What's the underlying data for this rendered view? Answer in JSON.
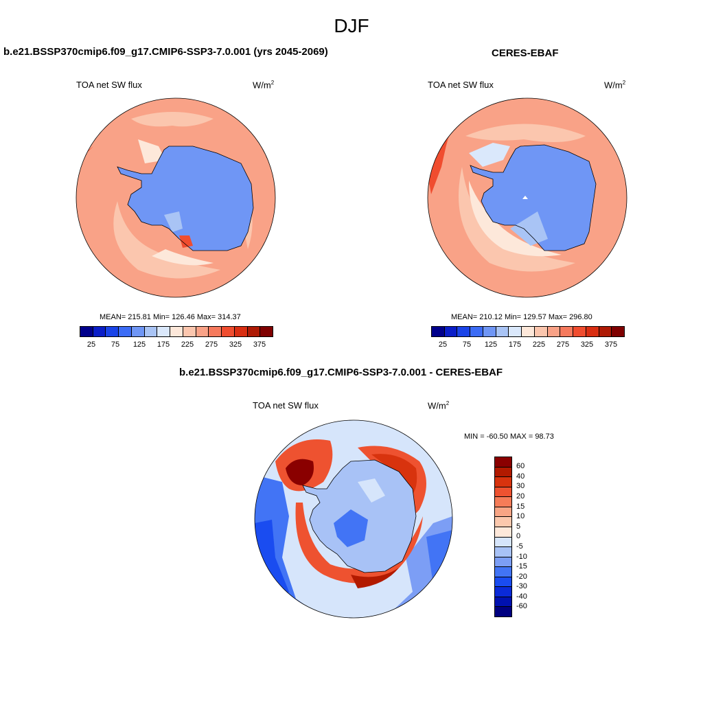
{
  "page": {
    "title": "DJF"
  },
  "panels": [
    {
      "title": "b.e21.BSSP370cmip6.f09_g17.CMIP6-SSP3-7.0.001 (yrs 2045-2069)",
      "left_label": "TOA net SW flux",
      "units": "W/m",
      "units_sup": "2",
      "stats": "MEAN= 215.81  Min= 126.46  Max= 314.37"
    },
    {
      "title": "CERES-EBAF",
      "left_label": "TOA net SW flux",
      "units": "W/m",
      "units_sup": "2",
      "stats": "MEAN= 210.12  Min= 129.57  Max= 296.80"
    },
    {
      "title": "b.e21.BSSP370cmip6.f09_g17.CMIP6-SSP3-7.0.001 - CERES-EBAF",
      "left_label": "TOA net SW flux",
      "units": "W/m",
      "units_sup": "2",
      "stats": "MIN = -60.50 MAX =  98.73"
    }
  ],
  "colorbars": {
    "abs": {
      "colors": [
        "#00008b",
        "#0a1ec8",
        "#1a44e8",
        "#3c6cf5",
        "#6f96f5",
        "#a9c4f5",
        "#dae8fb",
        "#fde8da",
        "#fbc6ae",
        "#f9a287",
        "#f67a5d",
        "#f04d2f",
        "#d92e12",
        "#ae1a05",
        "#7f0000"
      ],
      "labels": [
        "25",
        "75",
        "125",
        "175",
        "225",
        "275",
        "325",
        "375"
      ]
    },
    "diff": {
      "colors": [
        "#000080",
        "#0011b0",
        "#0a2ad8",
        "#1a4cf0",
        "#4274f5",
        "#7c9ef5",
        "#a8c2f6",
        "#d6e5fb",
        "#fde8da",
        "#fbc8ad",
        "#f8a585",
        "#f57c58",
        "#ee5230",
        "#d8330e",
        "#b21a00",
        "#8a0000"
      ],
      "labels": [
        "60",
        "40",
        "30",
        "20",
        "15",
        "10",
        "5",
        "0",
        "-5",
        "-10",
        "-15",
        "-20",
        "-30",
        "-40",
        "-60"
      ]
    }
  }
}
